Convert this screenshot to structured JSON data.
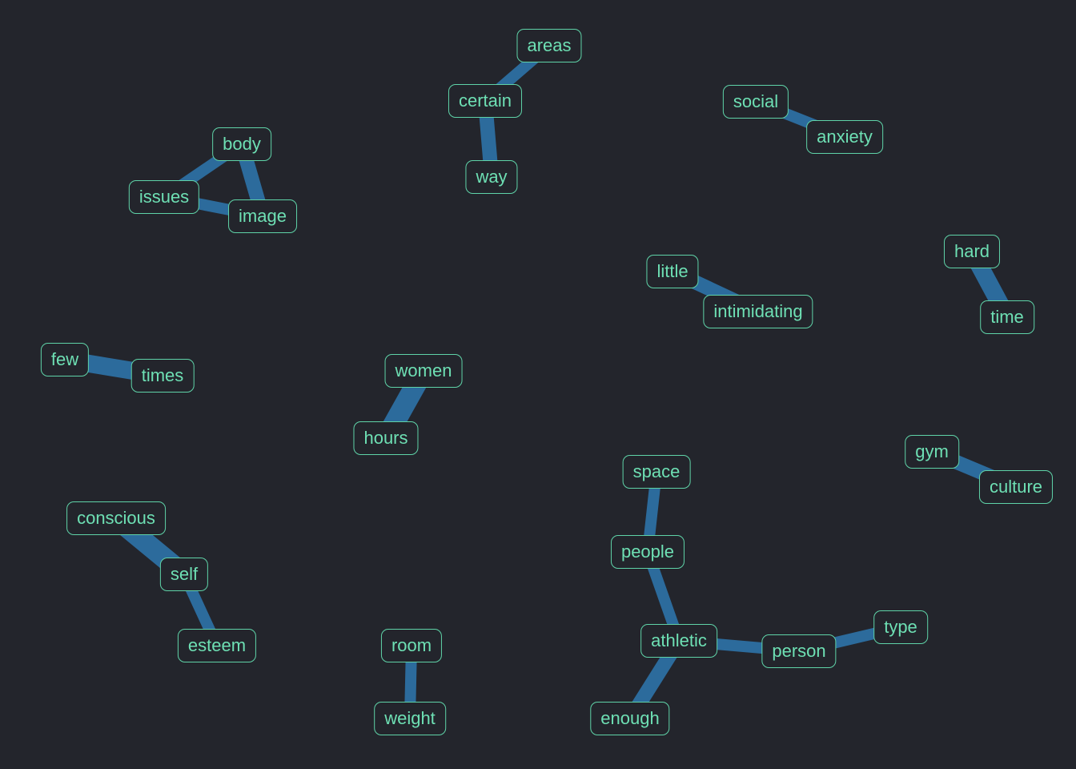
{
  "nodes": [
    {
      "id": "areas",
      "label": "areas"
    },
    {
      "id": "certain",
      "label": "certain"
    },
    {
      "id": "way",
      "label": "way"
    },
    {
      "id": "social",
      "label": "social"
    },
    {
      "id": "anxiety",
      "label": "anxiety"
    },
    {
      "id": "body",
      "label": "body"
    },
    {
      "id": "issues",
      "label": "issues"
    },
    {
      "id": "image",
      "label": "image"
    },
    {
      "id": "little",
      "label": "little"
    },
    {
      "id": "intimidating",
      "label": "intimidating"
    },
    {
      "id": "hard",
      "label": "hard"
    },
    {
      "id": "time",
      "label": "time"
    },
    {
      "id": "few",
      "label": "few"
    },
    {
      "id": "times",
      "label": "times"
    },
    {
      "id": "women",
      "label": "women"
    },
    {
      "id": "hours",
      "label": "hours"
    },
    {
      "id": "gym",
      "label": "gym"
    },
    {
      "id": "culture",
      "label": "culture"
    },
    {
      "id": "space",
      "label": "space"
    },
    {
      "id": "people",
      "label": "people"
    },
    {
      "id": "athletic",
      "label": "athletic"
    },
    {
      "id": "person",
      "label": "person"
    },
    {
      "id": "type",
      "label": "type"
    },
    {
      "id": "enough",
      "label": "enough"
    },
    {
      "id": "conscious",
      "label": "conscious"
    },
    {
      "id": "self",
      "label": "self"
    },
    {
      "id": "esteem",
      "label": "esteem"
    },
    {
      "id": "room",
      "label": "room"
    },
    {
      "id": "weight",
      "label": "weight"
    }
  ],
  "edges": [
    {
      "source": "areas",
      "target": "certain",
      "weight": 2
    },
    {
      "source": "certain",
      "target": "way",
      "weight": 3
    },
    {
      "source": "social",
      "target": "anxiety",
      "weight": 2
    },
    {
      "source": "body",
      "target": "issues",
      "weight": 2
    },
    {
      "source": "body",
      "target": "image",
      "weight": 3
    },
    {
      "source": "issues",
      "target": "image",
      "weight": 2
    },
    {
      "source": "little",
      "target": "intimidating",
      "weight": 3
    },
    {
      "source": "hard",
      "target": "time",
      "weight": 4
    },
    {
      "source": "few",
      "target": "times",
      "weight": 4
    },
    {
      "source": "women",
      "target": "hours",
      "weight": 5
    },
    {
      "source": "gym",
      "target": "culture",
      "weight": 3
    },
    {
      "source": "space",
      "target": "people",
      "weight": 2
    },
    {
      "source": "people",
      "target": "athletic",
      "weight": 2
    },
    {
      "source": "athletic",
      "target": "person",
      "weight": 2
    },
    {
      "source": "person",
      "target": "type",
      "weight": 2
    },
    {
      "source": "athletic",
      "target": "enough",
      "weight": 3
    },
    {
      "source": "conscious",
      "target": "self",
      "weight": 5
    },
    {
      "source": "self",
      "target": "esteem",
      "weight": 2
    },
    {
      "source": "room",
      "target": "weight",
      "weight": 2
    }
  ],
  "colors": {
    "background": "#23252c",
    "edge": "#2c6b9c",
    "node_border": "#5fd3a8",
    "node_text": "#6ee0b4"
  }
}
